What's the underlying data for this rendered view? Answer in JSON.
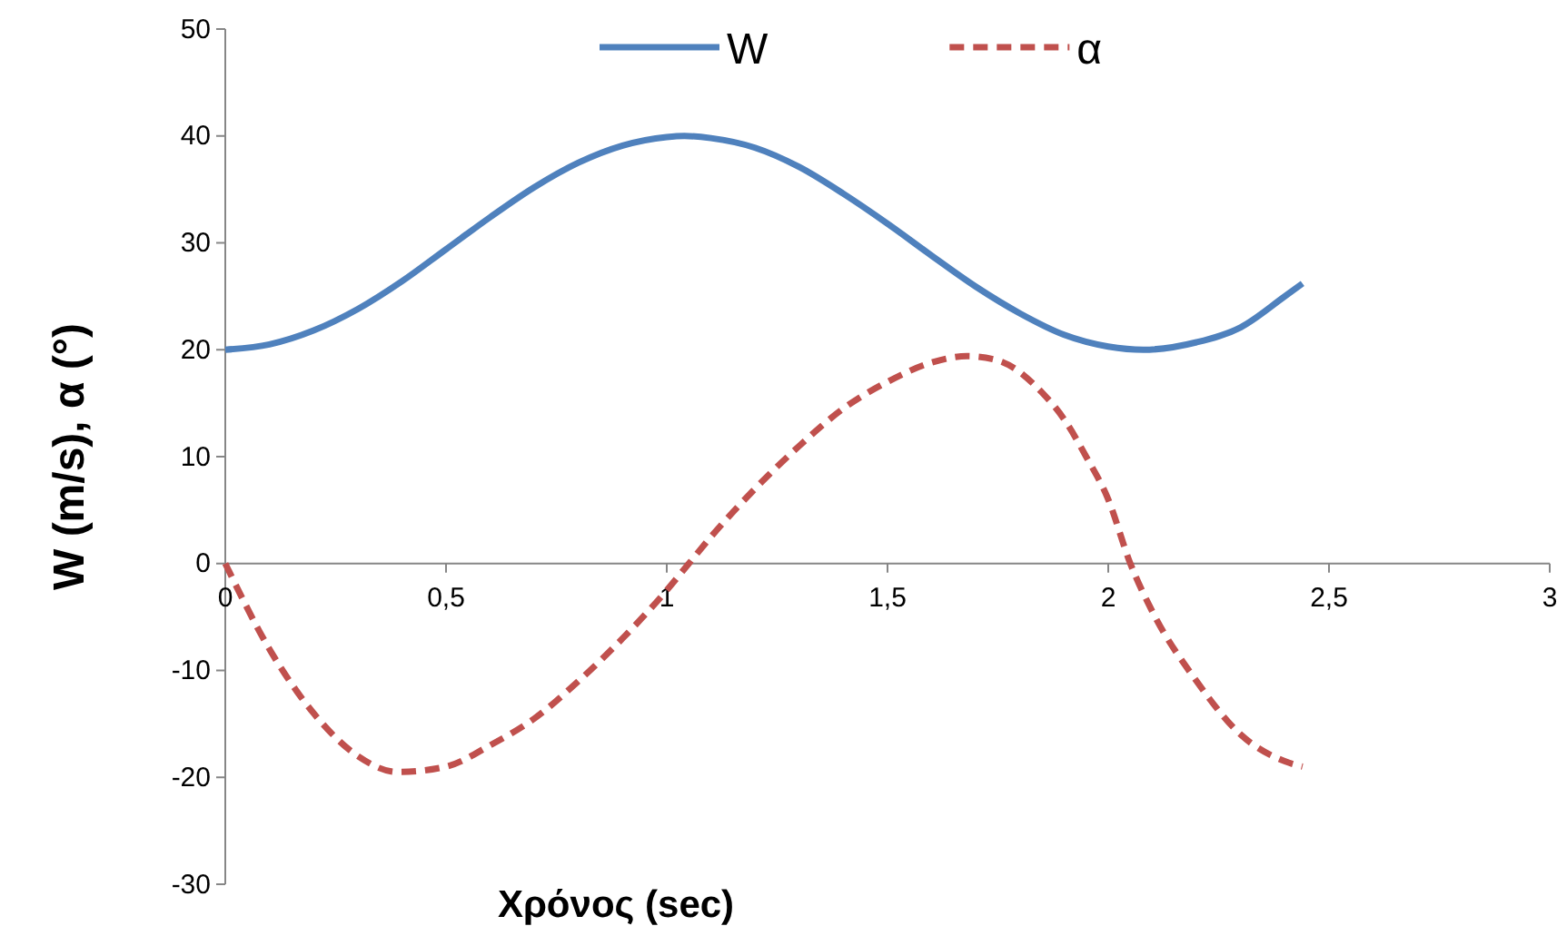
{
  "chart_data": {
    "type": "line",
    "xlabel": "Χρόνος (sec)",
    "ylabel": "W (m/s), α (°)",
    "xlim": [
      0,
      3
    ],
    "ylim": [
      -30,
      50
    ],
    "xticks": [
      0,
      {
        "value": 0.5,
        "label": "0,5"
      },
      1,
      {
        "value": 1.5,
        "label": "1,5"
      },
      2,
      {
        "value": 2.5,
        "label": "2,5"
      },
      3
    ],
    "yticks": [
      -30,
      -20,
      -10,
      0,
      10,
      20,
      30,
      40,
      50
    ],
    "grid": false,
    "legend": "top",
    "marker": "none",
    "series": [
      {
        "name": "W",
        "color": "#4f81bd",
        "line_style": "solid",
        "x": [
          0,
          0.1,
          0.2,
          0.3,
          0.4,
          0.5,
          0.6,
          0.7,
          0.8,
          0.9,
          1,
          1.04,
          1.1,
          1.2,
          1.3,
          1.4,
          1.5,
          1.6,
          1.7,
          1.8,
          1.9,
          2,
          2.08,
          2.2,
          2.3,
          2.4,
          2.44
        ],
        "values": [
          20,
          20.5,
          21.8,
          23.8,
          26.4,
          29.4,
          32.4,
          35.2,
          37.5,
          39.1,
          39.9,
          40,
          39.8,
          38.9,
          37.1,
          34.6,
          31.8,
          28.8,
          25.9,
          23.4,
          21.4,
          20.3,
          20,
          20.7,
          22.1,
          25,
          26.2
        ]
      },
      {
        "name": "α",
        "color": "#c0504d",
        "line_style": "dashed",
        "x": [
          0,
          0.1,
          0.2,
          0.3,
          0.39,
          0.5,
          0.6,
          0.7,
          0.8,
          0.9,
          1,
          1.05,
          1.1,
          1.2,
          1.3,
          1.4,
          1.5,
          1.6,
          1.68,
          1.75,
          1.85,
          1.9,
          1.95,
          2,
          2.05,
          2.1,
          2.2,
          2.3,
          2.4,
          2.44
        ],
        "values": [
          0,
          -8,
          -14,
          -18,
          -19.5,
          -19,
          -17,
          -14.5,
          -11,
          -7,
          -2.5,
          0,
          2.5,
          7,
          11,
          14.5,
          17,
          18.8,
          19.4,
          19,
          16,
          13.5,
          10,
          6,
          0,
          -4.5,
          -11,
          -16,
          -18.5,
          -19
        ]
      }
    ]
  }
}
